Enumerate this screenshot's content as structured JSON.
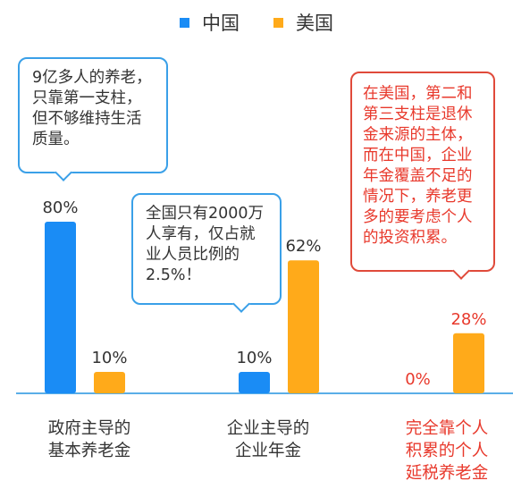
{
  "chart_data": {
    "type": "bar",
    "categories": [
      "政府主导的\n基本养老金",
      "企业主导的\n企业年金",
      "完全靠个人\n积累的个人\n延税养老金"
    ],
    "series": [
      {
        "name": "中国",
        "values": [
          80,
          10,
          0
        ],
        "labels": [
          "80%",
          "10%",
          "0%"
        ],
        "color": "#1a8cf5"
      },
      {
        "name": "美国",
        "values": [
          10,
          62,
          28
        ],
        "labels": [
          "10%",
          "62%",
          "28%"
        ],
        "color": "#ffaa1a"
      }
    ],
    "ylim": [
      0,
      100
    ],
    "grid": false,
    "legend_position": "top"
  },
  "annotations": [
    {
      "text": "9亿多人的养老，\n只靠第一支柱，\n但不够维持生活\n质量。",
      "style": "blue"
    },
    {
      "text": "全国只有2000万\n人享有，仅占就\n业人员比例的\n2.5%！",
      "style": "blue"
    },
    {
      "text": "在美国，第二和\n第三支柱是退休\n金来源的主体，\n而在中国，企业\n年金覆盖不足的\n情况下，养老更\n多的要考虑个人\n的投资积累。",
      "style": "red"
    }
  ],
  "colors": {
    "china": "#1a8cf5",
    "usa": "#ffaa1a",
    "axis": "#5aaee8",
    "highlight": "#e8392c"
  }
}
